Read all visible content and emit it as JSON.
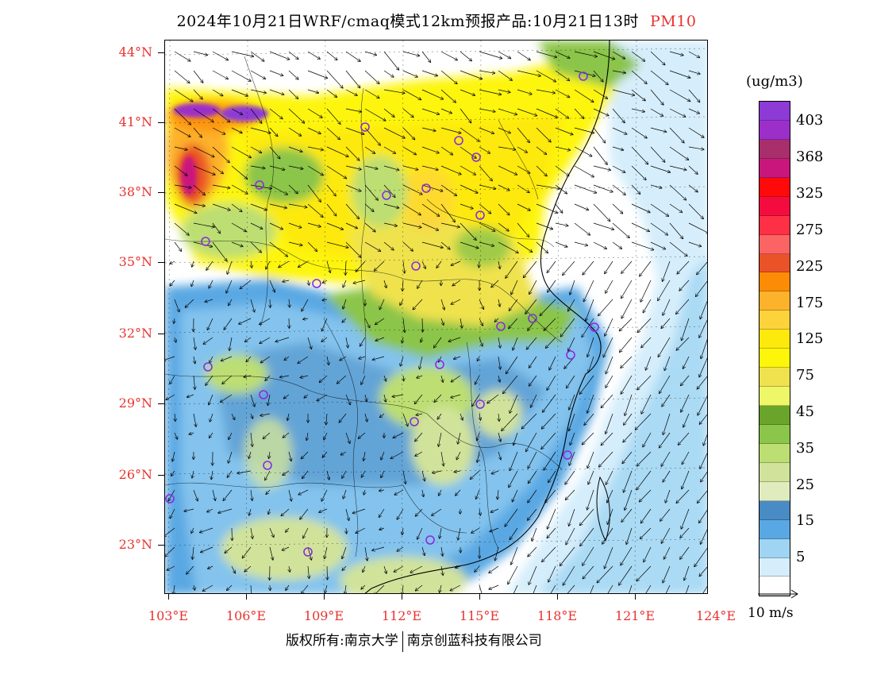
{
  "title": {
    "text": "2024年10月21日WRF/cmaq模式12km预报产品:10月21日13时",
    "variable": "PM10"
  },
  "map": {
    "latitude_labels": [
      "44°N",
      "41°N",
      "38°N",
      "35°N",
      "32°N",
      "29°N",
      "26°N",
      "23°N"
    ],
    "longitude_labels": [
      "103°E",
      "106°E",
      "109°E",
      "112°E",
      "115°E",
      "118°E",
      "121°E",
      "124°E"
    ],
    "content": "PM10 concentration shaded field with wind vectors over eastern China; purple circles mark cities",
    "colors": {
      "ocean": "#ffffff",
      "coast_border": "#000000",
      "city_marker": "#8a2be2",
      "label_red": "#e8332f"
    }
  },
  "colorbar": {
    "unit": "(ug/m3)",
    "labels": [
      "403",
      "368",
      "325",
      "275",
      "225",
      "175",
      "125",
      "75",
      "45",
      "35",
      "25",
      "15",
      "5"
    ],
    "colors": [
      "#8d3ad6",
      "#9c2fca",
      "#a82e6c",
      "#c9167d",
      "#ff0a0a",
      "#f50c3f",
      "#fe3045",
      "#fc6464",
      "#ea5228",
      "#fc8c06",
      "#fdb22c",
      "#fdd33c",
      "#fde90b",
      "#fdf50a",
      "#efe24e",
      "#eef768",
      "#6aa42a",
      "#8bc54a",
      "#bcde72",
      "#d1e39a",
      "#e1ecbe",
      "#498bc4",
      "#5aa8e3",
      "#9fd5f3",
      "#d6eefb",
      "#ffffff"
    ]
  },
  "wind_legend": {
    "label": "10 m/s"
  },
  "credit": {
    "left": "版权所有:南京大学",
    "right": "南京创蓝科技有限公司"
  }
}
